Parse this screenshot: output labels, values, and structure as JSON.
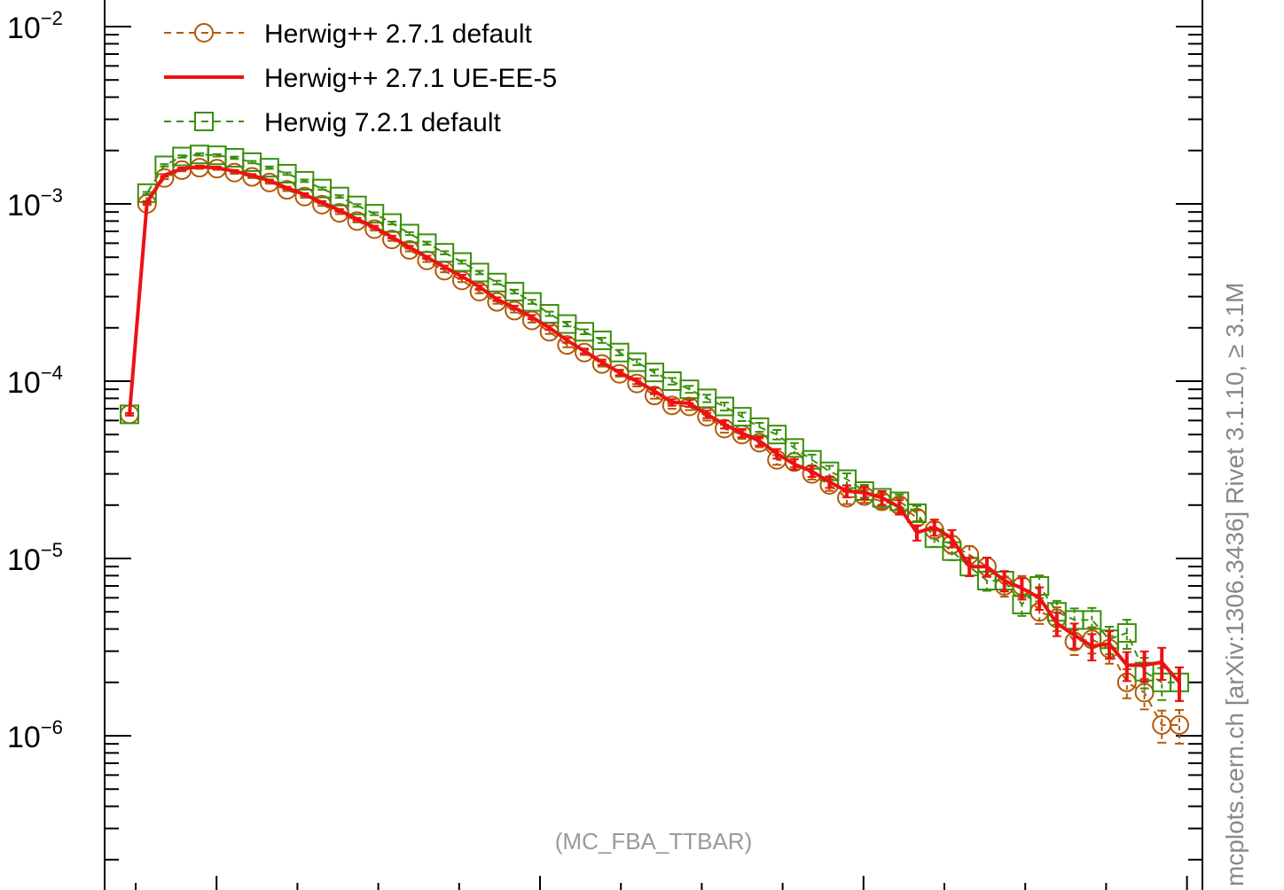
{
  "chart_data": {
    "type": "line",
    "title": "",
    "xlabel": "",
    "ylabel": "",
    "y_scale": "log",
    "ylim": [
      2e-07,
      0.01
    ],
    "xlim": [
      0,
      1
    ],
    "yticks": [
      {
        "base": "10",
        "exp": "−2"
      },
      {
        "base": "10",
        "exp": "−3"
      },
      {
        "base": "10",
        "exp": "−4"
      },
      {
        "base": "10",
        "exp": "−5"
      },
      {
        "base": "10",
        "exp": "−6"
      }
    ],
    "legend_position": "top-left",
    "watermark": "(MC_FBA_TTBAR)",
    "side_label": "mcplots.cern.ch [arXiv:1306.3436]      Rivet 3.1.10, ≥ 3.1M",
    "series": [
      {
        "name": "Herwig++ 2.7.1 default",
        "color": "#b35806",
        "marker": "circle",
        "dashed": true,
        "x": [
          0.0,
          0.0167,
          0.0333,
          0.05,
          0.0667,
          0.0833,
          0.1,
          0.1167,
          0.1333,
          0.15,
          0.1667,
          0.1833,
          0.2,
          0.2167,
          0.2333,
          0.25,
          0.2667,
          0.2833,
          0.3,
          0.3167,
          0.3333,
          0.35,
          0.3667,
          0.3833,
          0.4,
          0.4167,
          0.4333,
          0.45,
          0.4667,
          0.4833,
          0.5,
          0.5167,
          0.5333,
          0.55,
          0.5667,
          0.5833,
          0.6,
          0.6167,
          0.6333,
          0.65,
          0.6667,
          0.6833,
          0.7,
          0.7167,
          0.7333,
          0.75,
          0.7667,
          0.7833,
          0.8,
          0.8167,
          0.8333,
          0.85,
          0.8667,
          0.8833,
          0.9,
          0.9167,
          0.9333,
          0.95,
          0.9667,
          0.9833,
          1.0
        ],
        "y": [
          6.5e-05,
          0.001,
          0.0014,
          0.00155,
          0.0016,
          0.00158,
          0.0015,
          0.00142,
          0.00132,
          0.0012,
          0.0011,
          0.00099,
          0.00089,
          0.0008,
          0.00072,
          0.00063,
          0.00055,
          0.00048,
          0.00042,
          0.00037,
          0.00032,
          0.00028,
          0.00025,
          0.00022,
          0.00019,
          0.00016,
          0.000145,
          0.000125,
          0.00011,
          9.7e-05,
          8.3e-05,
          7.3e-05,
          7.2e-05,
          6.3e-05,
          5.4e-05,
          5e-05,
          4.5e-05,
          3.6e-05,
          3.5e-05,
          3e-05,
          2.6e-05,
          2.2e-05,
          2.25e-05,
          2.1e-05,
          2e-05,
          1.7e-05,
          1.45e-05,
          1.2e-05,
          1.05e-05,
          9e-06,
          7e-06,
          7e-06,
          5e-06,
          4.6e-06,
          3.4e-06,
          3.5e-06,
          3.1e-06,
          2e-06,
          1.75e-06,
          1.15e-06,
          1.15e-06
        ]
      },
      {
        "name": "Herwig++ 2.7.1 UE-EE-5",
        "color": "#ee1111",
        "marker": "none",
        "dashed": false,
        "x": [
          0.0,
          0.0167,
          0.0333,
          0.05,
          0.0667,
          0.0833,
          0.1,
          0.1167,
          0.1333,
          0.15,
          0.1667,
          0.1833,
          0.2,
          0.2167,
          0.2333,
          0.25,
          0.2667,
          0.2833,
          0.3,
          0.3167,
          0.3333,
          0.35,
          0.3667,
          0.3833,
          0.4,
          0.4167,
          0.4333,
          0.45,
          0.4667,
          0.4833,
          0.5,
          0.5167,
          0.5333,
          0.55,
          0.5667,
          0.5833,
          0.6,
          0.6167,
          0.6333,
          0.65,
          0.6667,
          0.6833,
          0.7,
          0.7167,
          0.7333,
          0.75,
          0.7667,
          0.7833,
          0.8,
          0.8167,
          0.8333,
          0.85,
          0.8667,
          0.8833,
          0.9,
          0.9167,
          0.9333,
          0.95,
          0.9667,
          0.9833,
          1.0
        ],
        "y": [
          6.5e-05,
          0.00102,
          0.00145,
          0.00158,
          0.00162,
          0.0016,
          0.00153,
          0.00145,
          0.00135,
          0.00123,
          0.00113,
          0.00102,
          0.00092,
          0.00082,
          0.00074,
          0.00065,
          0.00057,
          0.0005,
          0.00044,
          0.00039,
          0.00034,
          0.00029,
          0.00026,
          0.00023,
          0.0002,
          0.00017,
          0.000148,
          0.000128,
          0.000112,
          0.0001,
          8.8e-05,
          7.6e-05,
          7.5e-05,
          6.5e-05,
          5.7e-05,
          5.1e-05,
          4.6e-05,
          3.9e-05,
          3.4e-05,
          3.1e-05,
          2.7e-05,
          2.4e-05,
          2.35e-05,
          2.2e-05,
          1.95e-05,
          1.4e-05,
          1.5e-05,
          1.3e-05,
          9e-06,
          9e-06,
          7.5e-06,
          6.8e-06,
          6e-06,
          4.3e-06,
          3.7e-06,
          3.2e-06,
          3.3e-06,
          2.5e-06,
          2.5e-06,
          2.6e-06,
          2e-06
        ]
      },
      {
        "name": "Herwig 7.2.1 default",
        "color": "#3a8f0a",
        "marker": "square",
        "dashed": true,
        "x": [
          0.0,
          0.0167,
          0.0333,
          0.05,
          0.0667,
          0.0833,
          0.1,
          0.1167,
          0.1333,
          0.15,
          0.1667,
          0.1833,
          0.2,
          0.2167,
          0.2333,
          0.25,
          0.2667,
          0.2833,
          0.3,
          0.3167,
          0.3333,
          0.35,
          0.3667,
          0.3833,
          0.4,
          0.4167,
          0.4333,
          0.45,
          0.4667,
          0.4833,
          0.5,
          0.5167,
          0.5333,
          0.55,
          0.5667,
          0.5833,
          0.6,
          0.6167,
          0.6333,
          0.65,
          0.6667,
          0.6833,
          0.7,
          0.7167,
          0.7333,
          0.75,
          0.7667,
          0.7833,
          0.8,
          0.8167,
          0.8333,
          0.85,
          0.8667,
          0.8833,
          0.9,
          0.9167,
          0.9333,
          0.95,
          0.9667,
          0.9833,
          1.0
        ],
        "y": [
          6.5e-05,
          0.00115,
          0.00165,
          0.00185,
          0.0019,
          0.00188,
          0.00182,
          0.00172,
          0.0016,
          0.00148,
          0.00135,
          0.00122,
          0.0011,
          0.00098,
          0.00088,
          0.00078,
          0.00068,
          0.0006,
          0.00053,
          0.00047,
          0.00041,
          0.00036,
          0.00032,
          0.00028,
          0.00024,
          0.00021,
          0.00019,
          0.00017,
          0.000145,
          0.000128,
          0.000112,
          0.0001,
          9e-05,
          8e-05,
          7.2e-05,
          6.3e-05,
          5.5e-05,
          5e-05,
          4.2e-05,
          3.6e-05,
          3.1e-05,
          2.8e-05,
          2.4e-05,
          2.2e-05,
          2.1e-05,
          1.8e-05,
          1.3e-05,
          1.1e-05,
          9e-06,
          7.5e-06,
          7.5e-06,
          5.5e-06,
          7e-06,
          5e-06,
          4.5e-06,
          4.5e-06,
          3.5e-06,
          3.8e-06,
          2.3e-06,
          2e-06,
          2e-06
        ]
      }
    ]
  }
}
